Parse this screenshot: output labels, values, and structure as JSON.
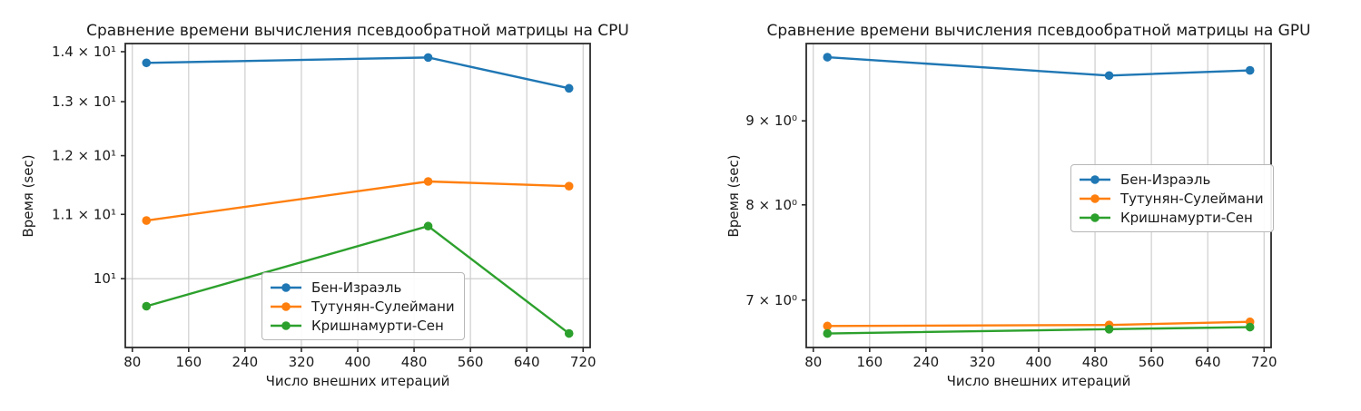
{
  "figure": {
    "background": "#ffffff",
    "grid_color": "#c9c9c9",
    "spine_color": "#2b2b2b",
    "text_color": "#1a1a1a"
  },
  "chart_data": [
    {
      "type": "line",
      "title": "Сравнение времени вычисления псевдообратной матрицы на CPU",
      "xlabel": "Число внешних итераций",
      "ylabel": "Время (sec)",
      "yscale": "log",
      "xlim": [
        70,
        730
      ],
      "ylim": [
        9.03,
        14.17
      ],
      "x": [
        100,
        500,
        700
      ],
      "series": [
        {
          "name": "Бен-Израэль",
          "color": "#1f77b4",
          "values": [
            13.77,
            13.88,
            13.26
          ]
        },
        {
          "name": "Тутунян-Сулеймани",
          "color": "#ff7f0e",
          "values": [
            10.9,
            11.55,
            11.47
          ]
        },
        {
          "name": "Кришнамурти-Сен",
          "color": "#2ca02c",
          "values": [
            9.6,
            10.81,
            9.22
          ]
        }
      ],
      "x_ticks": [
        80,
        160,
        240,
        320,
        400,
        480,
        560,
        640,
        720
      ],
      "y_ticks": [
        {
          "value": 14,
          "label": "1.4 × 10¹",
          "gridline": false
        },
        {
          "value": 13,
          "label": "1.3 × 10¹",
          "gridline": false
        },
        {
          "value": 12,
          "label": "1.2 × 10¹",
          "gridline": false
        },
        {
          "value": 11,
          "label": "1.1 × 10¹",
          "gridline": false
        },
        {
          "value": 10,
          "label": "10¹",
          "gridline": true
        }
      ],
      "grid_vertical": true,
      "legend_position": "lower center"
    },
    {
      "type": "line",
      "title": "Сравнение времени вычисления псевдообратной матрицы на GPU",
      "xlabel": "Число внешних итераций",
      "ylabel": "Время (sec)",
      "yscale": "log",
      "xlim": [
        70,
        730
      ],
      "ylim": [
        6.55,
        10.03
      ],
      "x": [
        100,
        500,
        700
      ],
      "series": [
        {
          "name": "Бен-Израэль",
          "color": "#1f77b4",
          "values": [
            9.84,
            9.59,
            9.66
          ]
        },
        {
          "name": "Тутунян-Сулеймани",
          "color": "#ff7f0e",
          "values": [
            6.75,
            6.76,
            6.79
          ]
        },
        {
          "name": "Кришнамурти-Сен",
          "color": "#2ca02c",
          "values": [
            6.68,
            6.72,
            6.74
          ]
        }
      ],
      "x_ticks": [
        80,
        160,
        240,
        320,
        400,
        480,
        560,
        640,
        720
      ],
      "y_ticks": [
        {
          "value": 9,
          "label": "9 × 10⁰",
          "gridline": false
        },
        {
          "value": 8,
          "label": "8 × 10⁰",
          "gridline": false
        },
        {
          "value": 7,
          "label": "7 × 10⁰",
          "gridline": false
        }
      ],
      "grid_vertical": true,
      "legend_position": "center right"
    }
  ]
}
